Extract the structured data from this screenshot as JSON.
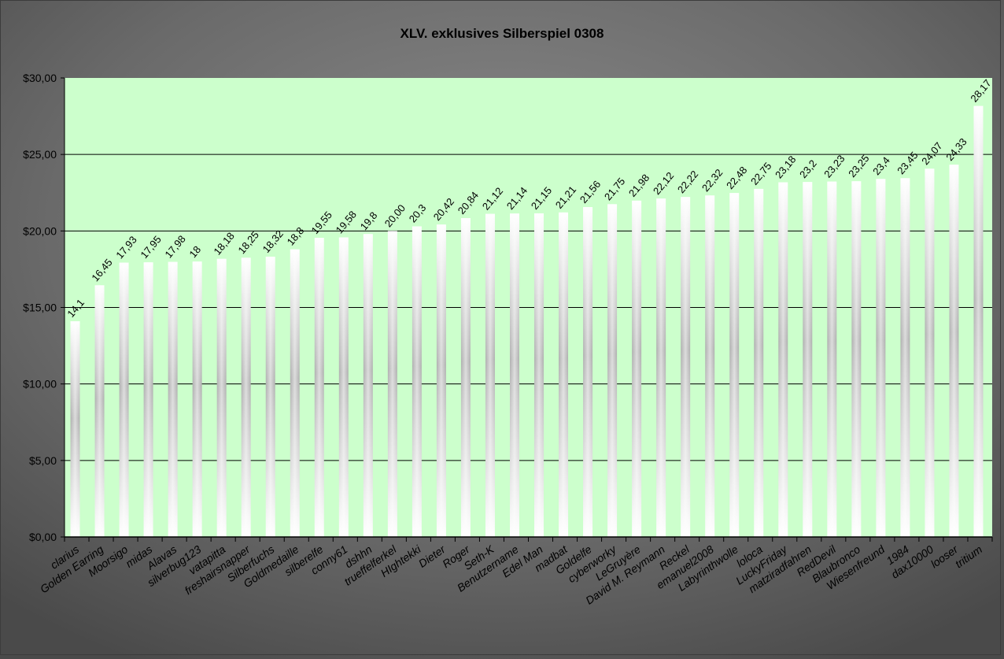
{
  "chart_data": {
    "type": "bar",
    "title": "XLV. exklusives Silberspiel 0308",
    "xlabel": "",
    "ylabel": "",
    "ylim": [
      0,
      30
    ],
    "yticks": [
      "$0,00",
      "$5,00",
      "$10,00",
      "$15,00",
      "$20,00",
      "$25,00",
      "$30,00"
    ],
    "ytick_values": [
      0,
      5,
      10,
      15,
      20,
      25,
      30
    ],
    "grid": true,
    "legend": "none",
    "colors": {
      "plot_background": "#ccffcc",
      "bar_light": "#ffffff",
      "bar_dark": "#a8a8a8",
      "frame": "#6e6e6e",
      "gridline": "#000000"
    },
    "categories": [
      "clarius",
      "Golden Earring",
      "Moorsigo",
      "midas",
      "Alavas",
      "silverbug123",
      "vatapitta",
      "freshairsnapper",
      "Silberfuchs",
      "Goldmedaille",
      "silberelfe",
      "conny61",
      "dshhn",
      "trueffelferkel",
      "HIghtekki",
      "Dieter",
      "Roger",
      "Seth-K",
      "Benutzername",
      "Edel Man",
      "madbat",
      "Goldelfe",
      "cyberworky",
      "LeGruyère",
      "David M. Reymann",
      "Reckel",
      "emanuel2008",
      "Labyrinthwolle",
      "loloca",
      "LuckyFriday",
      "matziradfahren",
      "RedDevil",
      "Blaubronco",
      "Wiesenfreund",
      "1984",
      "dax10000",
      "looser",
      "tritium"
    ],
    "values": [
      14.1,
      16.45,
      17.93,
      17.95,
      17.98,
      18,
      18.18,
      18.25,
      18.32,
      18.8,
      19.55,
      19.58,
      19.8,
      20.0,
      20.3,
      20.42,
      20.84,
      21.12,
      21.14,
      21.15,
      21.21,
      21.56,
      21.75,
      21.98,
      22.12,
      22.22,
      22.32,
      22.48,
      22.75,
      23.18,
      23.2,
      23.23,
      23.25,
      23.4,
      23.45,
      24.07,
      24.33,
      28.17
    ],
    "data_labels": [
      "14,1",
      "16,45",
      "17,93",
      "17,95",
      "17,98",
      "18",
      "18,18",
      "18,25",
      "18,32",
      "18,8",
      "19,55",
      "19,58",
      "19,8",
      "20,00",
      "20,3",
      "20,42",
      "20,84",
      "21,12",
      "21,14",
      "21,15",
      "21,21",
      "21,56",
      "21,75",
      "21,98",
      "22,12",
      "22,22",
      "22,32",
      "22,48",
      "22,75",
      "23,18",
      "23,2",
      "23,23",
      "23,25",
      "23,4",
      "23,45",
      "24,07",
      "24,33",
      "28,17"
    ]
  }
}
